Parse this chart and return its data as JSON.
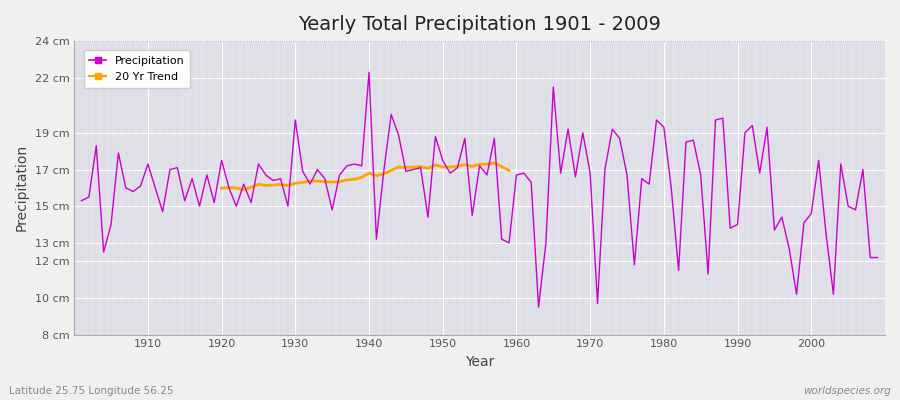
{
  "title": "Yearly Total Precipitation 1901 - 2009",
  "xlabel": "Year",
  "ylabel": "Precipitation",
  "subtitle": "Latitude 25.75 Longitude 56.25",
  "watermark": "worldspecies.org",
  "years": [
    1901,
    1902,
    1903,
    1904,
    1905,
    1906,
    1907,
    1908,
    1909,
    1910,
    1911,
    1912,
    1913,
    1914,
    1915,
    1916,
    1917,
    1918,
    1919,
    1920,
    1921,
    1922,
    1923,
    1924,
    1925,
    1926,
    1927,
    1928,
    1929,
    1930,
    1931,
    1932,
    1933,
    1934,
    1935,
    1936,
    1937,
    1938,
    1939,
    1940,
    1941,
    1942,
    1943,
    1944,
    1945,
    1946,
    1947,
    1948,
    1949,
    1950,
    1951,
    1952,
    1953,
    1954,
    1955,
    1956,
    1957,
    1958,
    1959,
    1960,
    1961,
    1962,
    1963,
    1964,
    1965,
    1966,
    1967,
    1968,
    1969,
    1970,
    1971,
    1972,
    1973,
    1974,
    1975,
    1976,
    1977,
    1978,
    1979,
    1980,
    1981,
    1982,
    1983,
    1984,
    1985,
    1986,
    1987,
    1988,
    1989,
    1990,
    1991,
    1992,
    1993,
    1994,
    1995,
    1996,
    1997,
    1998,
    1999,
    2000,
    2001,
    2002,
    2003,
    2004,
    2005,
    2006,
    2007,
    2008,
    2009
  ],
  "precip": [
    15.3,
    15.5,
    18.3,
    12.5,
    14.0,
    17.9,
    16.0,
    15.8,
    16.1,
    17.3,
    16.0,
    14.7,
    17.0,
    17.1,
    15.3,
    16.5,
    15.0,
    16.7,
    15.2,
    17.5,
    16.0,
    15.0,
    16.2,
    15.2,
    17.3,
    16.7,
    16.4,
    16.5,
    15.0,
    19.7,
    16.9,
    16.2,
    17.0,
    16.5,
    14.8,
    16.7,
    17.2,
    17.3,
    17.2,
    22.3,
    13.2,
    16.9,
    20.0,
    18.9,
    16.9,
    17.0,
    17.1,
    14.4,
    18.8,
    17.5,
    16.8,
    17.1,
    18.7,
    14.5,
    17.2,
    16.7,
    18.7,
    13.2,
    13.0,
    16.7,
    16.8,
    16.3,
    9.5,
    13.0,
    21.5,
    16.8,
    19.2,
    16.6,
    19.0,
    16.8,
    9.7,
    17.0,
    19.2,
    18.7,
    16.7,
    11.8,
    16.5,
    16.2,
    19.7,
    19.3,
    16.0,
    11.5,
    18.5,
    18.6,
    16.7,
    11.3,
    19.7,
    19.8,
    13.8,
    14.0,
    19.0,
    19.4,
    16.8,
    19.3,
    13.7,
    14.4,
    12.7,
    10.2,
    14.1,
    14.6,
    17.5,
    13.5,
    10.2,
    17.3,
    15.0,
    14.8,
    17.0,
    12.2,
    12.2
  ],
  "precip_color": "#CC00CC",
  "trend_color": "#FFA500",
  "bg_color": "#F0F0F0",
  "plot_bg_color": "#E0E0E8",
  "grid_color": "#FFFFFF",
  "minor_grid_color": "#CCCCCC",
  "ylim": [
    8,
    24
  ],
  "yticks": [
    8,
    10,
    12,
    13,
    15,
    17,
    19,
    22,
    24
  ],
  "ytick_labels": [
    "8 cm",
    "10 cm",
    "12 cm",
    "13 cm",
    "15 cm",
    "17 cm",
    "19 cm",
    "22 cm",
    "24 cm"
  ],
  "xticks": [
    1910,
    1920,
    1930,
    1940,
    1950,
    1960,
    1970,
    1980,
    1990,
    2000
  ],
  "title_fontsize": 14,
  "axis_label_fontsize": 10,
  "tick_fontsize": 8,
  "legend_fontsize": 8
}
